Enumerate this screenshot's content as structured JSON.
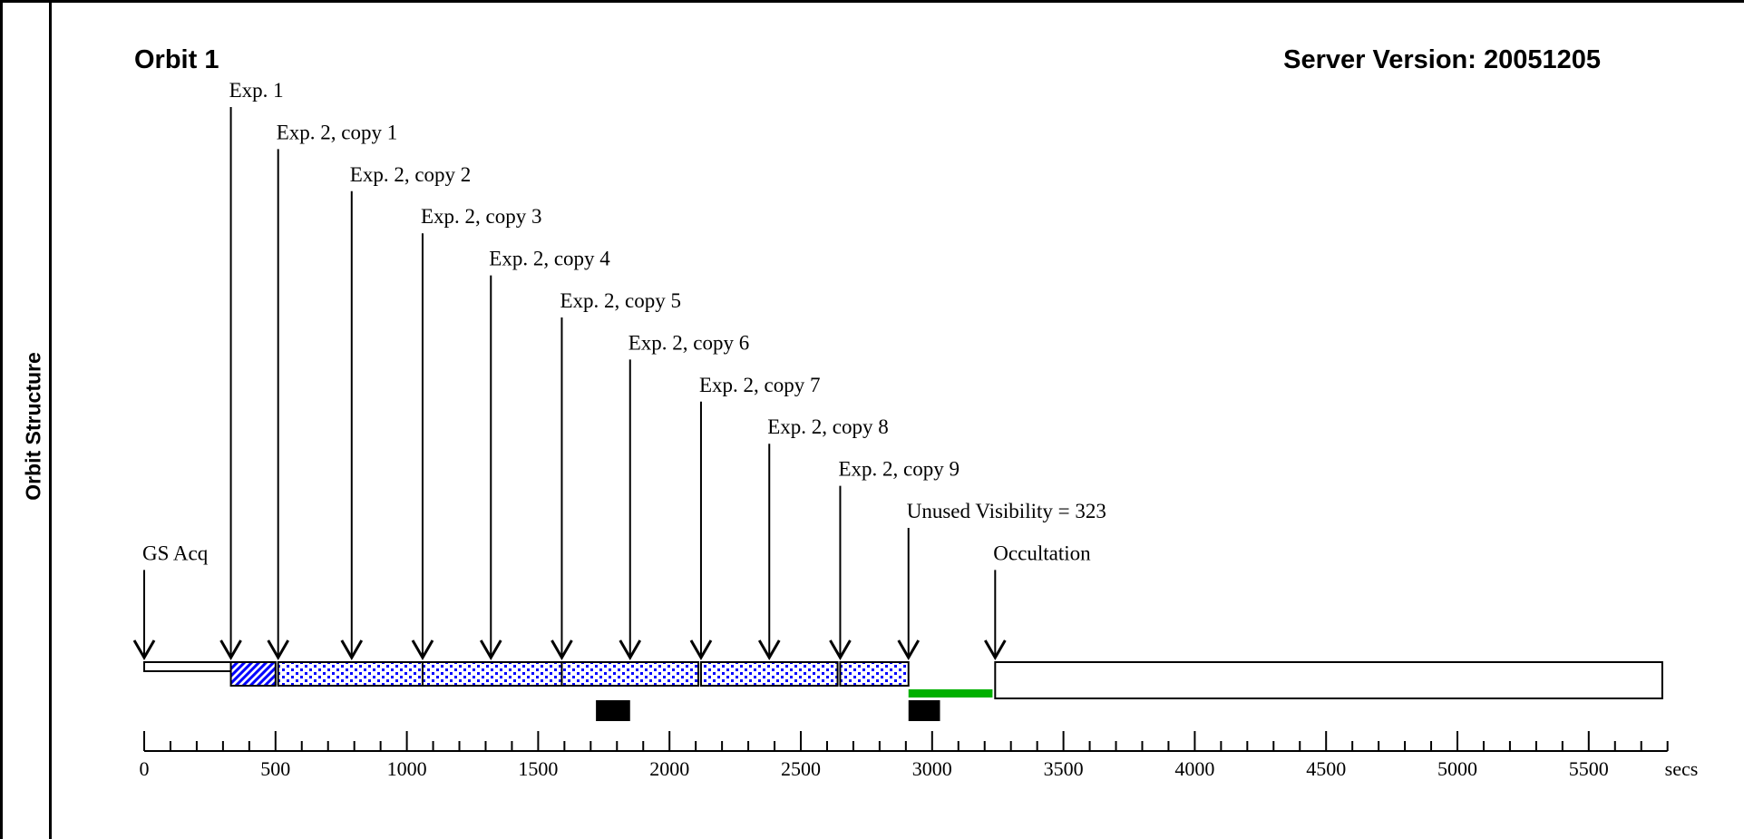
{
  "panel": {
    "side_label": "Orbit Structure"
  },
  "chart_data": {
    "type": "timeline",
    "title": "Orbit 1",
    "subtitle": "Server Version: 20051205",
    "x_unit_label": "secs",
    "xlim": [
      0,
      5800
    ],
    "major_ticks": [
      0,
      500,
      1000,
      1500,
      2000,
      2500,
      3000,
      3500,
      4000,
      4500,
      5000,
      5500
    ],
    "minor_tick_step": 100,
    "events": [
      {
        "label": "GS Acq",
        "t": 0,
        "level": 11
      },
      {
        "label": "Exp. 1",
        "t": 330,
        "level": 0
      },
      {
        "label": "Exp. 2, copy 1",
        "t": 510,
        "level": 1
      },
      {
        "label": "Exp. 2, copy 2",
        "t": 790,
        "level": 2
      },
      {
        "label": "Exp. 2, copy 3",
        "t": 1060,
        "level": 3
      },
      {
        "label": "Exp. 2, copy 4",
        "t": 1320,
        "level": 4
      },
      {
        "label": "Exp. 2, copy 5",
        "t": 1590,
        "level": 5
      },
      {
        "label": "Exp. 2, copy 6",
        "t": 1850,
        "level": 6
      },
      {
        "label": "Exp. 2, copy 7",
        "t": 2120,
        "level": 7
      },
      {
        "label": "Exp. 2, copy 8",
        "t": 2380,
        "level": 8
      },
      {
        "label": "Exp. 2, copy 9",
        "t": 2650,
        "level": 9
      },
      {
        "label": "Unused Visibility = 323",
        "t": 2910,
        "level": 10
      },
      {
        "label": "Occultation",
        "t": 3240,
        "level": 11
      }
    ],
    "segments": [
      {
        "kind": "acquisition",
        "start": 0,
        "end": 330
      },
      {
        "kind": "exp1",
        "start": 330,
        "end": 500
      },
      {
        "kind": "exp2",
        "start": 510,
        "end": 1060
      },
      {
        "kind": "exp2",
        "start": 1060,
        "end": 1590
      },
      {
        "kind": "exp2",
        "start": 1590,
        "end": 2110
      },
      {
        "kind": "exp2",
        "start": 2120,
        "end": 2640
      },
      {
        "kind": "exp2",
        "start": 2650,
        "end": 2910
      },
      {
        "kind": "unused",
        "start": 2910,
        "end": 3230
      },
      {
        "kind": "occultation",
        "start": 3240,
        "end": 5780
      }
    ],
    "markers": [
      {
        "start": 1720,
        "end": 1850
      },
      {
        "start": 2910,
        "end": 3030
      }
    ],
    "colors": {
      "exposure": "#0000ff",
      "unused": "#00b000",
      "marker": "#000000"
    }
  }
}
